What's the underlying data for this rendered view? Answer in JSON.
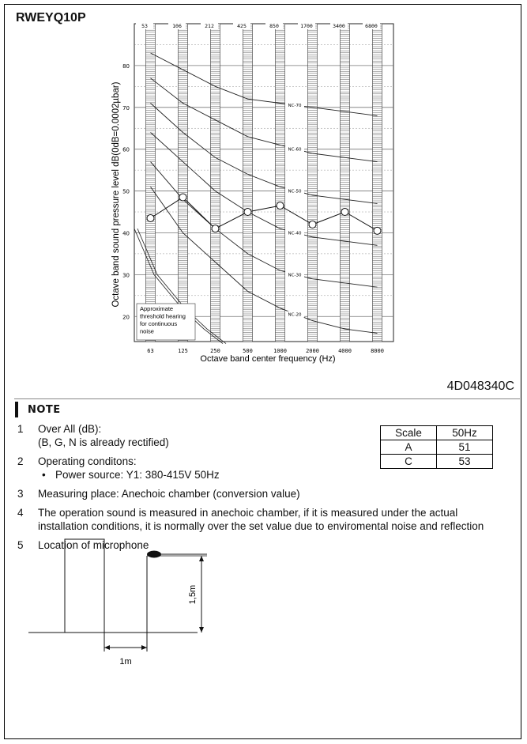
{
  "model": "RWEYQ10P",
  "doc_code": "4D048340C",
  "chart_data": {
    "type": "line",
    "title": "",
    "xlabel": "Octave band center frequency (Hz)",
    "ylabel": "Octave band sound pressure level  dB(0dB=0.0002µbar)",
    "x": [
      63,
      125,
      250,
      500,
      1000,
      2000,
      4000,
      8000
    ],
    "x_tick_labels": [
      "63",
      "125",
      "250",
      "500",
      "1000",
      "2000",
      "4000",
      "8000"
    ],
    "top_band_labels": [
      "53",
      "106",
      "212",
      "425",
      "850",
      "1700",
      "3400",
      "6800"
    ],
    "y_ticks": [
      20,
      30,
      40,
      50,
      60,
      70,
      80
    ],
    "ylim": [
      14,
      90
    ],
    "series": [
      {
        "values": [
          43.5,
          48.5,
          41,
          45,
          46.5,
          42,
          45,
          40.5
        ]
      }
    ],
    "nc_curves": [
      {
        "label": "NC-70",
        "values": [
          83,
          79,
          75,
          72,
          71,
          70,
          69,
          68
        ]
      },
      {
        "label": "NC-60",
        "values": [
          77,
          71,
          67,
          63,
          61,
          59,
          58,
          57
        ]
      },
      {
        "label": "NC-50",
        "values": [
          71,
          64,
          58,
          54,
          51,
          49,
          48,
          47
        ]
      },
      {
        "label": "NC-40",
        "values": [
          64,
          57,
          50,
          45,
          41,
          39,
          38,
          37
        ]
      },
      {
        "label": "NC-30",
        "values": [
          57,
          48,
          41,
          35,
          31,
          29,
          28,
          27
        ]
      },
      {
        "label": "NC-20",
        "values": [
          51,
          40,
          33,
          26,
          22,
          19,
          17,
          16
        ]
      }
    ],
    "threshold_label": [
      "Approximate",
      "threshold hearing",
      "for continuous",
      "noise"
    ],
    "grid": true
  },
  "note": {
    "heading": "NOTE",
    "items": [
      {
        "num": "1",
        "lines": [
          "Over All (dB):",
          "(B, G, N is already rectified)"
        ]
      },
      {
        "num": "2",
        "lines": [
          "Operating conditons:"
        ],
        "sub": [
          "Power source: Y1: 380-415V  50Hz"
        ]
      },
      {
        "num": "3",
        "lines": [
          "Measuring place: Anechoic chamber (conversion value)"
        ]
      },
      {
        "num": "4",
        "lines": [
          "The operation sound is measured in anechoic chamber, if it is measured under the actual installation conditions, it is normally over the set value due to enviromental noise and reflection"
        ]
      },
      {
        "num": "5",
        "lines": [
          "Location of microphone"
        ]
      }
    ]
  },
  "scale_table": {
    "header": [
      "Scale",
      "50Hz"
    ],
    "rows": [
      [
        "A",
        "51"
      ],
      [
        "C",
        "53"
      ]
    ]
  },
  "mic_diagram": {
    "height_label": "1,5m",
    "distance_label": "1m"
  }
}
